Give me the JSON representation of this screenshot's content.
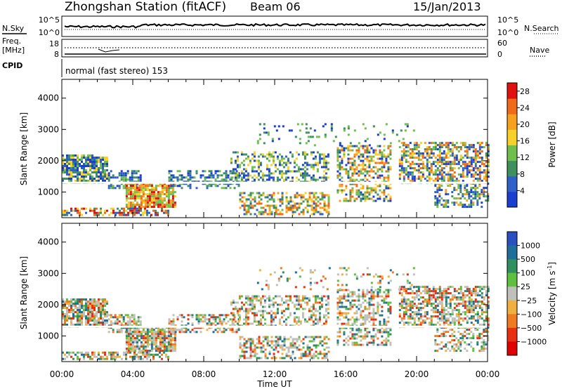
{
  "header": {
    "station": "Zhongshan Station (fitACF)",
    "beam": "Beam 06",
    "date": "15/Jan/2013"
  },
  "top_panels": {
    "nsky_label": "N.Sky",
    "nsky_ticks": [
      "10^5",
      "10^0"
    ],
    "nsearch_label": "N.Search",
    "nsearch_ticks": [
      "10^5",
      "10^0"
    ],
    "freq_label_1": "Freq.",
    "freq_label_2": "[MHz]",
    "freq_ticks": [
      "18",
      "8"
    ],
    "nave_label": "Nave",
    "nave_ticks": [
      "60",
      "0"
    ],
    "cpid_label": "CPID",
    "cpid_text": "normal (fast stereo) 153"
  },
  "colors": {
    "power_scale": [
      "#1a3fcf",
      "#2f5fc8",
      "#3f8f5f",
      "#6fbf4f",
      "#f5d12a",
      "#f7a21f",
      "#f06a1a",
      "#e01010"
    ],
    "velocity_scale": [
      "#2a4fc0",
      "#1e6f9a",
      "#2f8f5f",
      "#5fbf3f",
      "#c0c0bb",
      "#f0b040",
      "#f07a20",
      "#e83010",
      "#e00000"
    ]
  },
  "chart_data": [
    {
      "type": "heatmap",
      "name": "power",
      "ylabel": "Slant Range [km]",
      "xlabel": "Time UT",
      "xlim_hours": [
        0,
        24
      ],
      "ylim_km": [
        180,
        4600
      ],
      "x_ticks": [
        "00:00",
        "04:00",
        "08:00",
        "12:00",
        "16:00",
        "20:00",
        "00:00"
      ],
      "y_ticks": [
        1000,
        2000,
        3000,
        4000
      ],
      "colorbar": {
        "label": "Power [dB]",
        "ticks": [
          4,
          8,
          12,
          16,
          20,
          24,
          28
        ],
        "range": [
          0,
          30
        ]
      }
    },
    {
      "type": "heatmap",
      "name": "velocity",
      "ylabel": "Slant Range [km]",
      "xlabel": "Time UT",
      "xlim_hours": [
        0,
        24
      ],
      "ylim_km": [
        180,
        4600
      ],
      "x_ticks": [
        "00:00",
        "04:00",
        "08:00",
        "12:00",
        "16:00",
        "20:00",
        "00:00"
      ],
      "y_ticks": [
        1000,
        2000,
        3000,
        4000
      ],
      "colorbar": {
        "label": "Velocity [m s^-1]",
        "ticks": [
          "1000",
          "500",
          "100",
          "25",
          "−25",
          "−100",
          "−500",
          "−1000"
        ]
      }
    }
  ]
}
